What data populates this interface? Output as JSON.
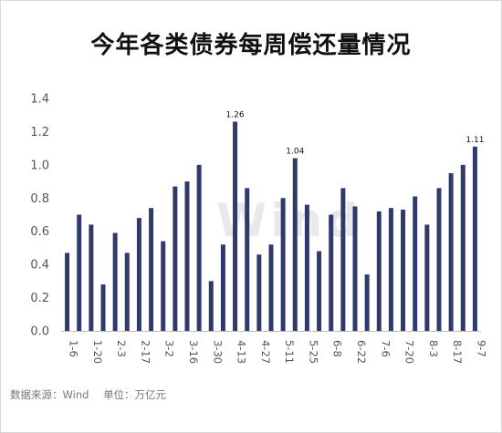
{
  "title": "今年各类债券每周偿还量情况",
  "watermark": "Wind",
  "footer": {
    "source": "数据来源：Wind",
    "unit": "单位：万亿元"
  },
  "colors": {
    "bar": "#2f3a6b",
    "axis": "#bfbfbf",
    "text": "#555555"
  },
  "chart_data": {
    "type": "bar",
    "title": "今年各类债券每周偿还量情况",
    "xlabel": "",
    "ylabel": "",
    "ylim": [
      0,
      1.4
    ],
    "yticks": [
      "0.0",
      "0.2",
      "0.4",
      "0.6",
      "0.8",
      "1.0",
      "1.2",
      "1.4"
    ],
    "grid": false,
    "values": [
      0.47,
      0.7,
      0.64,
      0.28,
      0.59,
      0.47,
      0.68,
      0.74,
      0.54,
      0.87,
      0.9,
      1.0,
      0.3,
      0.52,
      1.26,
      0.86,
      0.46,
      0.52,
      0.8,
      1.04,
      0.76,
      0.48,
      0.7,
      0.86,
      0.75,
      0.34,
      0.72,
      0.74,
      0.73,
      0.81,
      0.64,
      0.86,
      0.95,
      1.0,
      1.11
    ],
    "category_labels": [
      {
        "index": 0,
        "text": "1-6"
      },
      {
        "index": 2,
        "text": "1-20"
      },
      {
        "index": 4,
        "text": "2-3"
      },
      {
        "index": 6,
        "text": "2-17"
      },
      {
        "index": 8,
        "text": "3-2"
      },
      {
        "index": 10,
        "text": "3-16"
      },
      {
        "index": 12,
        "text": "3-30"
      },
      {
        "index": 14,
        "text": "4-13"
      },
      {
        "index": 16,
        "text": "4-27"
      },
      {
        "index": 18,
        "text": "5-11"
      },
      {
        "index": 20,
        "text": "5-25"
      },
      {
        "index": 22,
        "text": "6-8"
      },
      {
        "index": 24,
        "text": "6-22"
      },
      {
        "index": 26,
        "text": "7-6"
      },
      {
        "index": 28,
        "text": "7-20"
      },
      {
        "index": 30,
        "text": "8-3"
      },
      {
        "index": 32,
        "text": "8-17"
      },
      {
        "index": 34,
        "text": "9-7"
      }
    ],
    "data_labels": [
      {
        "index": 14,
        "text": "1.26"
      },
      {
        "index": 19,
        "text": "1.04"
      },
      {
        "index": 34,
        "text": "1.11"
      }
    ]
  }
}
